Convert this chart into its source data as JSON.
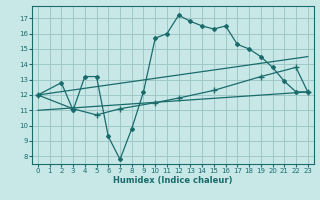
{
  "xlabel": "Humidex (Indice chaleur)",
  "bg_color": "#c8e8e8",
  "grid_color": "#a0c8c8",
  "line_color": "#1a6b6b",
  "xlim": [
    -0.5,
    23.5
  ],
  "ylim": [
    7.5,
    17.8
  ],
  "yticks": [
    8,
    9,
    10,
    11,
    12,
    13,
    14,
    15,
    16,
    17
  ],
  "xticks": [
    0,
    1,
    2,
    3,
    4,
    5,
    6,
    7,
    8,
    9,
    10,
    11,
    12,
    13,
    14,
    15,
    16,
    17,
    18,
    19,
    20,
    21,
    22,
    23
  ],
  "series": [
    {
      "x": [
        0,
        2,
        3,
        4,
        5,
        6,
        7,
        8,
        9,
        10,
        11,
        12,
        13,
        14,
        15,
        16,
        17,
        18,
        19,
        20,
        21,
        22,
        23
      ],
      "y": [
        12.0,
        12.8,
        11.0,
        13.2,
        13.2,
        9.3,
        7.8,
        9.8,
        12.2,
        15.7,
        16.0,
        17.2,
        16.8,
        16.5,
        16.3,
        16.5,
        15.3,
        15.0,
        14.5,
        13.8,
        12.9,
        12.2,
        12.2
      ],
      "marker": "D",
      "markersize": 2.0,
      "linewidth": 0.9
    },
    {
      "x": [
        0,
        3,
        5,
        7,
        10,
        12,
        15,
        19,
        22,
        23
      ],
      "y": [
        12.0,
        11.1,
        10.7,
        11.1,
        11.5,
        11.8,
        12.3,
        13.2,
        13.8,
        12.2
      ],
      "marker": "+",
      "markersize": 4.0,
      "linewidth": 0.9
    },
    {
      "x": [
        0,
        23
      ],
      "y": [
        12.0,
        14.5
      ],
      "marker": null,
      "markersize": 0,
      "linewidth": 0.9
    },
    {
      "x": [
        0,
        23
      ],
      "y": [
        11.0,
        12.2
      ],
      "marker": null,
      "markersize": 0,
      "linewidth": 0.9
    }
  ]
}
